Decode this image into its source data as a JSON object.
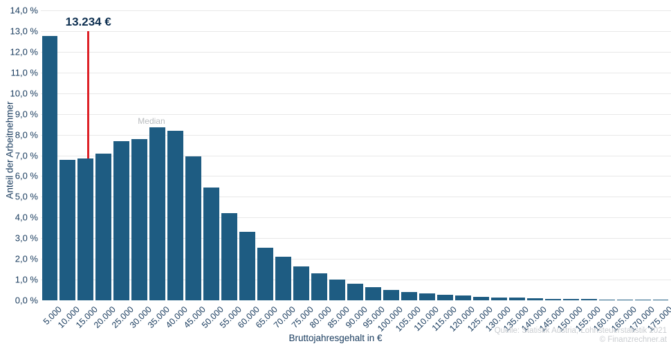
{
  "chart_data": {
    "type": "bar",
    "title": "",
    "xlabel": "Bruttojahresgehalt in €",
    "ylabel": "Anteil der Arbeitnehmer",
    "categories": [
      "5.000",
      "10.000",
      "15.000",
      "20.000",
      "25.000",
      "30.000",
      "35.000",
      "40.000",
      "45.000",
      "50.000",
      "55.000",
      "60.000",
      "65.000",
      "70.000",
      "75.000",
      "80.000",
      "85.000",
      "90.000",
      "95.000",
      "100.000",
      "105.000",
      "110.000",
      "115.000",
      "120.000",
      "125.000",
      "130.000",
      "135.000",
      "140.000",
      "145.000",
      "150.000",
      "155.000",
      "160.000",
      "165.000",
      "170.000",
      "175.000"
    ],
    "values": [
      12.75,
      6.8,
      6.85,
      7.1,
      7.7,
      7.8,
      8.35,
      8.2,
      6.95,
      5.45,
      4.2,
      3.3,
      2.55,
      2.1,
      1.65,
      1.3,
      1.0,
      0.8,
      0.65,
      0.5,
      0.4,
      0.33,
      0.27,
      0.22,
      0.18,
      0.15,
      0.12,
      0.1,
      0.08,
      0.07,
      0.06,
      0.05,
      0.04,
      0.03,
      0.025
    ],
    "ylim": [
      0,
      14
    ],
    "y_ticks": [
      "0,0 %",
      "1,0 %",
      "2,0 %",
      "3,0 %",
      "4,0 %",
      "5,0 %",
      "6,0 %",
      "7,0 %",
      "8,0 %",
      "9,0 %",
      "10,0 %",
      "11,0 %",
      "12,0 %",
      "13,0 %",
      "14,0 %"
    ],
    "grid": "horizontal",
    "legend": null,
    "bin_width": 5000,
    "colors": {
      "bar": "#1e5c82",
      "gridline": "#e8e8e8",
      "axis_text": "#16395c",
      "threshold_line": "#dd2127",
      "median_dash": "#8fc2de",
      "median_text": "#b9bcbf",
      "source_text": "#c9ccd0"
    },
    "annotations": {
      "threshold": {
        "label": "13.234 €",
        "salary_value": 13234
      },
      "median": {
        "label": "Median"
      }
    }
  },
  "source": {
    "line1": "Quelle: Statistik Austria, Lohnsteuerstatistik 2021",
    "line2": "© Finanzrechner.at"
  }
}
